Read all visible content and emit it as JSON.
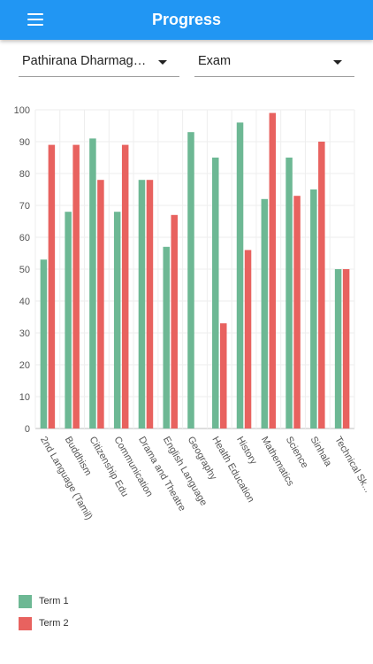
{
  "header": {
    "title": "Progress",
    "menu_icon": "hamburger-menu-icon"
  },
  "filters": {
    "student": "Pathirana Dharmage Kasuni Sathsarani",
    "exam": "Exam"
  },
  "colors": {
    "appbar": "#2196f3",
    "term1": "#6db894",
    "term2": "#e8625f"
  },
  "chart_data": {
    "type": "bar",
    "categories": [
      "2nd Language (Tamil)",
      "Buddhism",
      "Citizenship Edu",
      "Communication",
      "Drama and Theatre",
      "English Language",
      "Geography",
      "Health Education",
      "History",
      "Mathematics",
      "Science",
      "Sinhala",
      "Technical Sk..."
    ],
    "series": [
      {
        "name": "Term 1",
        "color": "#6db894",
        "values": [
          53,
          68,
          91,
          68,
          78,
          57,
          93,
          85,
          96,
          72,
          85,
          75,
          50
        ]
      },
      {
        "name": "Term 2",
        "color": "#e8625f",
        "values": [
          89,
          89,
          78,
          89,
          78,
          67,
          null,
          33,
          56,
          99,
          73,
          90,
          50
        ]
      }
    ],
    "yticks": [
      0,
      10,
      20,
      30,
      40,
      50,
      60,
      70,
      80,
      90,
      100
    ],
    "ylim": [
      0,
      100
    ],
    "grid": true,
    "legend": "bottom-left"
  }
}
